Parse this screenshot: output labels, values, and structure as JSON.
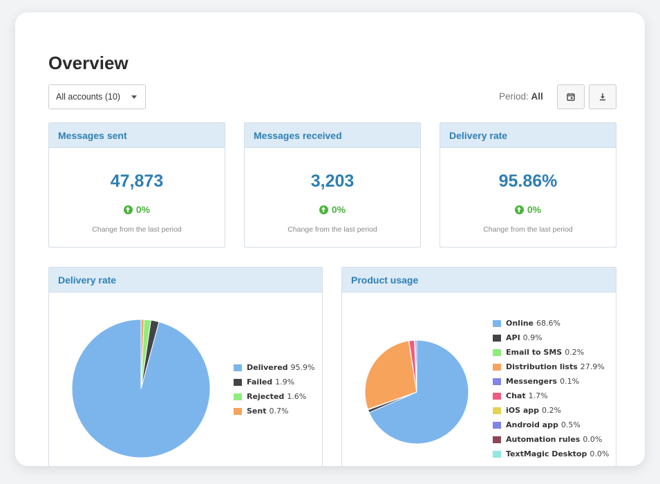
{
  "page": {
    "title": "Overview"
  },
  "filters": {
    "account_select": "All accounts (10)",
    "period_label": "Period:",
    "period_value": "All"
  },
  "toolbar": {
    "calendar_icon": "calendar-icon",
    "download_icon": "download-icon"
  },
  "stats": [
    {
      "title": "Messages sent",
      "value": "47,873",
      "change": "0%",
      "note": "Change from the last period"
    },
    {
      "title": "Messages received",
      "value": "3,203",
      "change": "0%",
      "note": "Change from the last period"
    },
    {
      "title": "Delivery rate",
      "value": "95.86%",
      "change": "0%",
      "note": "Change from the last period"
    }
  ],
  "colors": {
    "accent": "#2e7fb3",
    "header_bg": "#ddebf7",
    "positive": "#4db33d"
  },
  "chart_data": [
    {
      "type": "pie",
      "title": "Delivery rate",
      "legend_position": "right",
      "slices": [
        {
          "label": "Delivered",
          "value": 95.9,
          "display": "95.9%",
          "color": "#7cb5ec"
        },
        {
          "label": "Failed",
          "value": 1.9,
          "display": "1.9%",
          "color": "#434348"
        },
        {
          "label": "Rejected",
          "value": 1.6,
          "display": "1.6%",
          "color": "#90ed7d"
        },
        {
          "label": "Sent",
          "value": 0.7,
          "display": "0.7%",
          "color": "#f7a35c"
        }
      ]
    },
    {
      "type": "pie",
      "title": "Product usage",
      "legend_position": "right",
      "slices": [
        {
          "label": "Online",
          "value": 68.6,
          "display": "68.6%",
          "color": "#7cb5ec"
        },
        {
          "label": "API",
          "value": 0.9,
          "display": "0.9%",
          "color": "#434348"
        },
        {
          "label": "Email to SMS",
          "value": 0.2,
          "display": "0.2%",
          "color": "#90ed7d"
        },
        {
          "label": "Distribution lists",
          "value": 27.9,
          "display": "27.9%",
          "color": "#f7a35c"
        },
        {
          "label": "Messengers",
          "value": 0.1,
          "display": "0.1%",
          "color": "#8085e9"
        },
        {
          "label": "Chat",
          "value": 1.7,
          "display": "1.7%",
          "color": "#f15c80"
        },
        {
          "label": "iOS app",
          "value": 0.2,
          "display": "0.2%",
          "color": "#e4d354"
        },
        {
          "label": "Android app",
          "value": 0.5,
          "display": "0.5%",
          "color": "#8085e8"
        },
        {
          "label": "Automation rules",
          "value": 0.0,
          "display": "0.0%",
          "color": "#8d4653"
        },
        {
          "label": "TextMagic Desktop",
          "value": 0.0,
          "display": "0.0%",
          "color": "#91e8e1"
        }
      ]
    }
  ]
}
